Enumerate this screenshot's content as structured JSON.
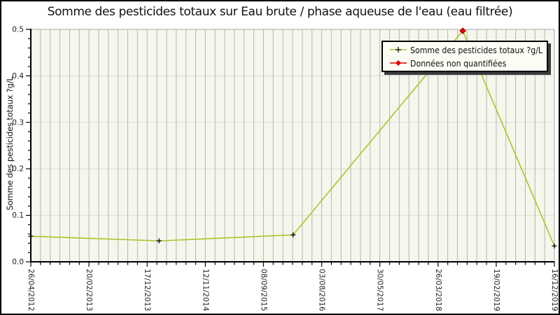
{
  "chart_data": {
    "type": "line",
    "title": "Somme des pesticides totaux sur Eau brute / phase aqueuse de l'eau (eau filtrée)",
    "xlabel": "",
    "ylabel": "Somme des pesticides totaux ?g/L",
    "ylim": [
      0.0,
      0.5
    ],
    "y_tick_labels": [
      "0.0",
      "0.1",
      "0.2",
      "0.3",
      "0.4",
      "0.5"
    ],
    "y_minor_tick_step": 0.02,
    "x_tick_labels": [
      "26/04/2012",
      "20/02/2013",
      "17/12/2013",
      "12/11/2014",
      "08/09/2015",
      "03/08/2016",
      "30/05/2017",
      "26/03/2018",
      "19/02/2019",
      "16/12/2019"
    ],
    "x_minor_divisions_per_major": 6,
    "grid": {
      "vertical_minor": true,
      "horizontal_major": true
    },
    "legend": {
      "position": "top-right",
      "entries": [
        {
          "label": "Somme des pesticides totaux ?g/L",
          "marker": "plus",
          "marker_color": "#000000",
          "line_color": "#a8c626"
        },
        {
          "label": "Données non quantifiées",
          "marker": "diamond",
          "marker_color": "#dd0000",
          "line_color": "#dd0000"
        }
      ]
    },
    "series": [
      {
        "name": "Somme des pesticides totaux ?g/L",
        "line_color": "#a8c626",
        "points": [
          {
            "x_frac": 0.0,
            "value": 0.055,
            "non_quantified": false
          },
          {
            "x_frac": 0.245,
            "value": 0.045,
            "non_quantified": false
          },
          {
            "x_frac": 0.501,
            "value": 0.058,
            "non_quantified": false
          },
          {
            "x_frac": 0.825,
            "value": 0.497,
            "non_quantified": true
          },
          {
            "x_frac": 1.0,
            "value": 0.034,
            "non_quantified": false
          }
        ]
      }
    ],
    "colors": {
      "plot_background": "#f6f6ed",
      "vertical_grid": "#b5b5b5",
      "horizontal_grid": "#dcdcdc",
      "axis": "#000000",
      "frame": "#a8a8a8",
      "tick_label": "#222222",
      "marker": "#000000",
      "non_quantified": "#dd0000"
    }
  }
}
